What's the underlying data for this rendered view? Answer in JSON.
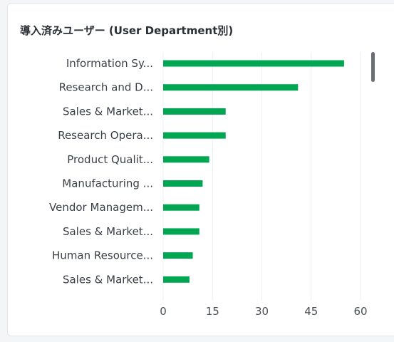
{
  "card": {
    "title": "導入済みユーザー (User Department別)"
  },
  "chart_data": {
    "type": "bar",
    "orientation": "horizontal",
    "title": "導入済みユーザー (User Department別)",
    "xlabel": "",
    "ylabel": "",
    "xlim": [
      0,
      60
    ],
    "x_ticks": [
      0,
      15,
      30,
      45,
      60
    ],
    "grid": true,
    "bar_color": "#00a651",
    "categories": [
      "Information Sy...",
      "Research and D...",
      "Sales & Market...",
      "Research Opera...",
      "Product Qualit...",
      "Manufacturing ...",
      "Vendor Managem...",
      "Sales & Market...",
      "Human Resource...",
      "Sales & Market..."
    ],
    "values": [
      55,
      41,
      19,
      19,
      14,
      12,
      11,
      11,
      9,
      8
    ]
  }
}
